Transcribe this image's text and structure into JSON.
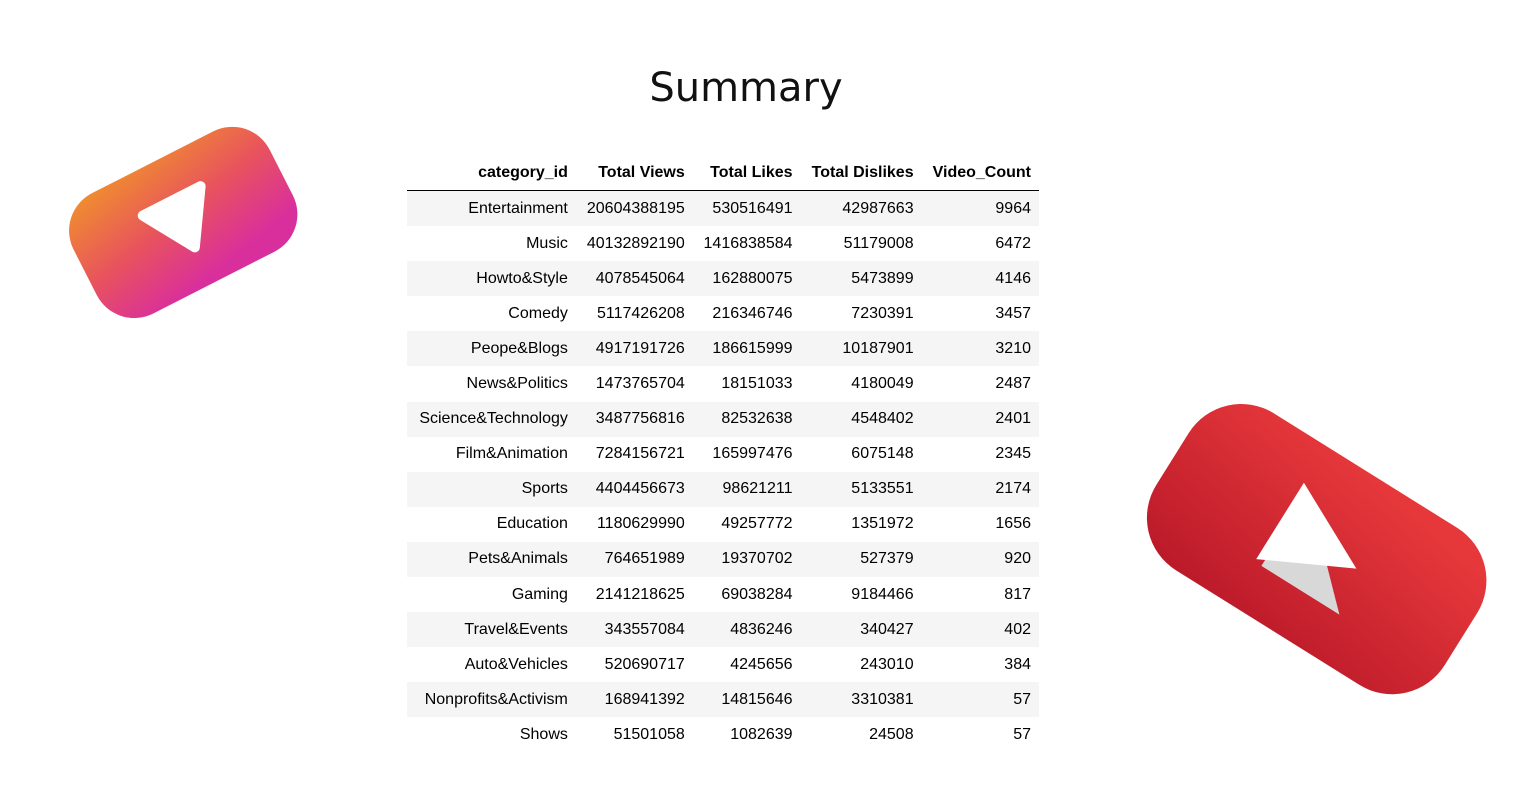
{
  "page": {
    "title": "Summary"
  },
  "table": {
    "columns": [
      "category_id",
      "Total Views",
      "Total Likes",
      "Total Dislikes",
      "Video_Count"
    ],
    "rows": [
      [
        "Entertainment",
        "20604388195",
        "530516491",
        "42987663",
        "9964"
      ],
      [
        "Music",
        "40132892190",
        "1416838584",
        "51179008",
        "6472"
      ],
      [
        "Howto&Style",
        "4078545064",
        "162880075",
        "5473899",
        "4146"
      ],
      [
        "Comedy",
        "5117426208",
        "216346746",
        "7230391",
        "3457"
      ],
      [
        "Peope&Blogs",
        "4917191726",
        "186615999",
        "10187901",
        "3210"
      ],
      [
        "News&Politics",
        "1473765704",
        "18151033",
        "4180049",
        "2487"
      ],
      [
        "Science&Technology",
        "3487756816",
        "82532638",
        "4548402",
        "2401"
      ],
      [
        "Film&Animation",
        "7284156721",
        "165997476",
        "6075148",
        "2345"
      ],
      [
        "Sports",
        "4404456673",
        "98621211",
        "5133551",
        "2174"
      ],
      [
        "Education",
        "1180629990",
        "49257772",
        "1351972",
        "1656"
      ],
      [
        "Pets&Animals",
        "764651989",
        "19370702",
        "527379",
        "920"
      ],
      [
        "Gaming",
        "2141218625",
        "69038284",
        "9184466",
        "817"
      ],
      [
        "Travel&Events",
        "343557084",
        "4836246",
        "340427",
        "402"
      ],
      [
        "Auto&Vehicles",
        "520690717",
        "4245656",
        "243010",
        "384"
      ],
      [
        "Nonprofits&Activism",
        "168941392",
        "14815646",
        "3310381",
        "57"
      ],
      [
        "Shows",
        "51501058",
        "1082639",
        "24508",
        "57"
      ]
    ]
  },
  "decorations": {
    "left_icon": "play-button-icon",
    "left_colors": [
      "#f08c30",
      "#e0349a"
    ],
    "right_icon": "play-button-icon",
    "right_colors": [
      "#e8383a",
      "#b8182a"
    ]
  }
}
